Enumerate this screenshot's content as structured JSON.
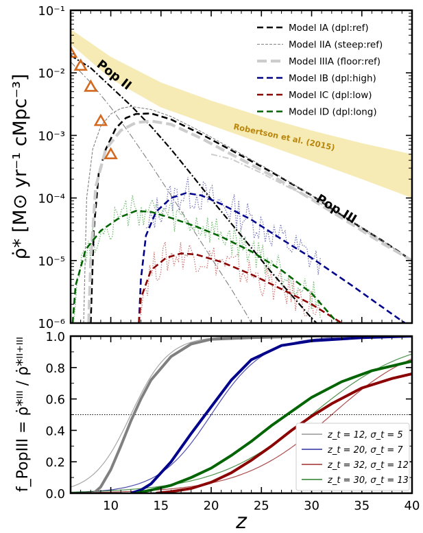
{
  "chart_data": [
    {
      "type": "line",
      "ylabel": "ρ̇* [M⊙ yr⁻¹ cMpc⁻³]",
      "yscale": "log",
      "xlim": [
        6,
        40
      ],
      "ylim": [
        1e-06,
        0.1
      ],
      "ytick_labels": [
        "10⁻⁶",
        "10⁻⁵",
        "10⁻⁴",
        "10⁻³",
        "10⁻²",
        "10⁻¹"
      ],
      "legend_position": "top-right",
      "colors": {
        "IA": "#000000",
        "IIA": "#808080",
        "IIIA": "#cccccc",
        "IB": "#00008b",
        "IC": "#8b0000",
        "ID": "#006400",
        "band": "#f5e6a8",
        "obs": "#d2691e"
      },
      "series": [
        {
          "name": "Model IA (dpl:ref)",
          "style": "dashed",
          "popIII": [
            [
              8.0,
              1e-06
            ],
            [
              8.3,
              3e-05
            ],
            [
              8.8,
              0.00025
            ],
            [
              9.5,
              0.0006
            ],
            [
              10.5,
              0.0013
            ],
            [
              11.5,
              0.0019
            ],
            [
              12.5,
              0.0022
            ],
            [
              14,
              0.00225
            ],
            [
              16,
              0.0018
            ],
            [
              19,
              0.00105
            ],
            [
              22,
              0.00058
            ],
            [
              26,
              0.00026
            ],
            [
              30,
              0.00011
            ],
            [
              34,
              4.2e-05
            ],
            [
              37,
              2.1e-05
            ],
            [
              40,
              1e-05
            ]
          ]
        },
        {
          "name": "Model IIA (steep:ref)",
          "style": "dashed-thin",
          "popIII": [
            [
              7.3,
              1e-06
            ],
            [
              7.6,
              0.0001
            ],
            [
              8.2,
              0.0006
            ],
            [
              9,
              0.0014
            ],
            [
              10,
              0.0022
            ],
            [
              11,
              0.0027
            ],
            [
              12,
              0.0029
            ],
            [
              14,
              0.0026
            ],
            [
              16,
              0.002
            ],
            [
              19,
              0.00115
            ],
            [
              22,
              0.00062
            ],
            [
              26,
              0.00027
            ],
            [
              30,
              0.00011
            ],
            [
              34,
              4.3e-05
            ],
            [
              37,
              2.1e-05
            ],
            [
              40,
              1e-05
            ]
          ]
        },
        {
          "name": "Model IIIA (floor:ref)",
          "style": "dashed-thick",
          "popIII": [
            [
              7.8,
              1e-06
            ],
            [
              8.0,
              1e-05
            ],
            [
              8.5,
              0.00015
            ],
            [
              9.5,
              0.0006
            ],
            [
              11,
              0.0012
            ],
            [
              12.5,
              0.0016
            ],
            [
              14,
              0.0017
            ],
            [
              16,
              0.0015
            ],
            [
              19,
              0.0009
            ],
            [
              22,
              0.0005
            ],
            [
              26,
              0.00023
            ],
            [
              30,
              9.5e-05
            ],
            [
              34,
              3.8e-05
            ],
            [
              37,
              1.9e-05
            ],
            [
              40,
              1e-05
            ]
          ]
        },
        {
          "name": "Model IB (dpl:high)",
          "style": "dashed",
          "popIII": [
            [
              12.8,
              1e-06
            ],
            [
              13,
              5e-06
            ],
            [
              13.5,
              2.5e-05
            ],
            [
              14.5,
              6e-05
            ],
            [
              16,
              0.0001
            ],
            [
              17.5,
              0.00012
            ],
            [
              19,
              0.00011
            ],
            [
              21,
              8e-05
            ],
            [
              24,
              4.5e-05
            ],
            [
              27,
              2.2e-05
            ],
            [
              30,
              1.1e-05
            ],
            [
              34,
              4e-06
            ],
            [
              38,
              1.4e-06
            ],
            [
              39.3,
              1e-06
            ]
          ]
        },
        {
          "name": "Model IC (dpl:low)",
          "style": "dashed",
          "popIII": [
            [
              12.8,
              1e-06
            ],
            [
              13,
              2.5e-06
            ],
            [
              14,
              7e-06
            ],
            [
              15.5,
              1.1e-05
            ],
            [
              17,
              1.3e-05
            ],
            [
              18.5,
              1.25e-05
            ],
            [
              21,
              9.5e-06
            ],
            [
              24,
              6e-06
            ],
            [
              27,
              3.5e-06
            ],
            [
              30,
              2e-06
            ],
            [
              33,
              1e-06
            ]
          ]
        },
        {
          "name": "Model ID (dpl:long)",
          "style": "dashed",
          "popIII": [
            [
              6.2,
              1e-06
            ],
            [
              6.5,
              4e-06
            ],
            [
              7.5,
              1.5e-05
            ],
            [
              9,
              3e-05
            ],
            [
              11,
              5e-05
            ],
            [
              12.5,
              6.2e-05
            ],
            [
              14,
              6e-05
            ],
            [
              16,
              4.8e-05
            ],
            [
              18.5,
              3.5e-05
            ],
            [
              21,
              2.4e-05
            ],
            [
              24,
              1.4e-05
            ],
            [
              27,
              7e-06
            ],
            [
              30,
              3e-06
            ],
            [
              32.6,
              1e-06
            ]
          ]
        }
      ],
      "popII_lines": [
        {
          "model": "IA",
          "points": [
            [
              6,
              0.019
            ],
            [
              8,
              0.012
            ],
            [
              10,
              0.006
            ],
            [
              12,
              0.003
            ],
            [
              14,
              0.0014
            ],
            [
              16,
              0.0006
            ],
            [
              18,
              0.00024
            ],
            [
              20,
              9.5e-05
            ],
            [
              22,
              3.9e-05
            ],
            [
              24,
              1.6e-05
            ],
            [
              26,
              6.5e-06
            ],
            [
              28,
              2.8e-06
            ],
            [
              30,
              1.2e-06
            ],
            [
              30.5,
              1e-06
            ]
          ]
        },
        {
          "model": "IIA",
          "points": [
            [
              6,
              0.015
            ],
            [
              8,
              0.007
            ],
            [
              10,
              0.0028
            ],
            [
              12,
              0.001
            ],
            [
              14,
              0.00034
            ],
            [
              16,
              0.00011
            ],
            [
              18,
              3.5e-05
            ],
            [
              20,
              1.1e-05
            ],
            [
              22,
              3.5e-06
            ],
            [
              23.5,
              1.4e-06
            ],
            [
              24,
              1e-06
            ]
          ]
        },
        {
          "model": "IIIA",
          "points": [
            [
              20,
              0.0005
            ],
            [
              22,
              0.00042
            ],
            [
              25,
              0.00025
            ],
            [
              28,
              0.00014
            ],
            [
              30,
              0.0001
            ],
            [
              33,
              5e-05
            ],
            [
              36,
              2.5e-05
            ],
            [
              40,
              1e-05
            ]
          ]
        }
      ],
      "noisy_sims": [
        {
          "model": "IB",
          "range": [
            13.5,
            31
          ]
        },
        {
          "model": "IC",
          "range": [
            13,
            31
          ]
        },
        {
          "model": "ID",
          "range": [
            6,
            31
          ]
        }
      ],
      "band": {
        "label": "Robertson et al. (2015)",
        "lower": [
          [
            6,
            0.029
          ],
          [
            10,
            0.008
          ],
          [
            15,
            0.0028
          ],
          [
            20,
            0.00145
          ],
          [
            25,
            0.00075
          ],
          [
            30,
            0.00039
          ],
          [
            35,
            0.0002
          ],
          [
            40,
            0.0001
          ]
        ],
        "upper": [
          [
            6,
            0.05
          ],
          [
            10,
            0.018
          ],
          [
            15,
            0.007
          ],
          [
            20,
            0.0036
          ],
          [
            25,
            0.002
          ],
          [
            30,
            0.0012
          ],
          [
            35,
            0.00075
          ],
          [
            40,
            0.0005
          ]
        ]
      },
      "observations": [
        [
          6,
          0.021
        ],
        [
          7,
          0.013
        ],
        [
          8,
          0.006
        ],
        [
          9,
          0.0017
        ],
        [
          10,
          0.0005
        ]
      ],
      "annotations": [
        "Pop II",
        "Pop III",
        "Robertson et al. (2015)"
      ]
    },
    {
      "type": "line",
      "xlabel": "z",
      "ylabel": "f_PopIII = ρ̇*ᴵᴵᴵ / ρ̇*ᴵᴵ⁺ᴵᴵᴵ",
      "xlim": [
        6,
        40
      ],
      "ylim": [
        0,
        1
      ],
      "xtick_labels": [
        "10",
        "15",
        "20",
        "25",
        "30",
        "35",
        "40"
      ],
      "ytick_labels": [
        "0.0",
        "0.2",
        "0.4",
        "0.6",
        "0.8",
        "1.0"
      ],
      "hline": 0.5,
      "legend_position": "bottom-right",
      "series": [
        {
          "name": "z_t = 12, σ_t = 5",
          "color": "#808080",
          "thin_sigma": 5,
          "thick": [
            [
              8.3,
              0
            ],
            [
              9,
              0.04
            ],
            [
              10,
              0.15
            ],
            [
              11,
              0.3
            ],
            [
              12,
              0.46
            ],
            [
              13,
              0.6
            ],
            [
              14,
              0.72
            ],
            [
              16,
              0.87
            ],
            [
              18,
              0.95
            ],
            [
              20,
              0.98
            ],
            [
              24,
              0.99
            ],
            [
              30,
              1.0
            ],
            [
              40,
              1.0
            ]
          ]
        },
        {
          "name": "z_t = 20, σ_t = 7",
          "color": "#00008b",
          "thin_sigma": 7,
          "thick": [
            [
              12,
              0
            ],
            [
              13,
              0.02
            ],
            [
              14,
              0.06
            ],
            [
              16,
              0.2
            ],
            [
              18,
              0.38
            ],
            [
              20,
              0.55
            ],
            [
              22,
              0.72
            ],
            [
              24,
              0.85
            ],
            [
              27,
              0.94
            ],
            [
              30,
              0.97
            ],
            [
              35,
              0.99
            ],
            [
              40,
              1.0
            ]
          ]
        },
        {
          "name": "z_t = 32, σ_t = 12",
          "color": "#8b0000",
          "thin_sigma": 12,
          "thick": [
            [
              14.5,
              0
            ],
            [
              16,
              0.01
            ],
            [
              18,
              0.03
            ],
            [
              20,
              0.07
            ],
            [
              22,
              0.13
            ],
            [
              24,
              0.21
            ],
            [
              26,
              0.3
            ],
            [
              28,
              0.4
            ],
            [
              30,
              0.49
            ],
            [
              32,
              0.57
            ],
            [
              35,
              0.67
            ],
            [
              38,
              0.73
            ],
            [
              40,
              0.76
            ]
          ]
        },
        {
          "name": "z_t = 30, σ_t = 13",
          "color": "#006400",
          "thin_sigma": 13,
          "thick": [
            [
              12.5,
              0
            ],
            [
              14,
              0.02
            ],
            [
              16,
              0.05
            ],
            [
              18,
              0.1
            ],
            [
              20,
              0.16
            ],
            [
              22,
              0.24
            ],
            [
              24,
              0.33
            ],
            [
              26,
              0.43
            ],
            [
              28,
              0.52
            ],
            [
              30,
              0.61
            ],
            [
              33,
              0.71
            ],
            [
              36,
              0.78
            ],
            [
              40,
              0.84
            ]
          ]
        }
      ]
    }
  ]
}
